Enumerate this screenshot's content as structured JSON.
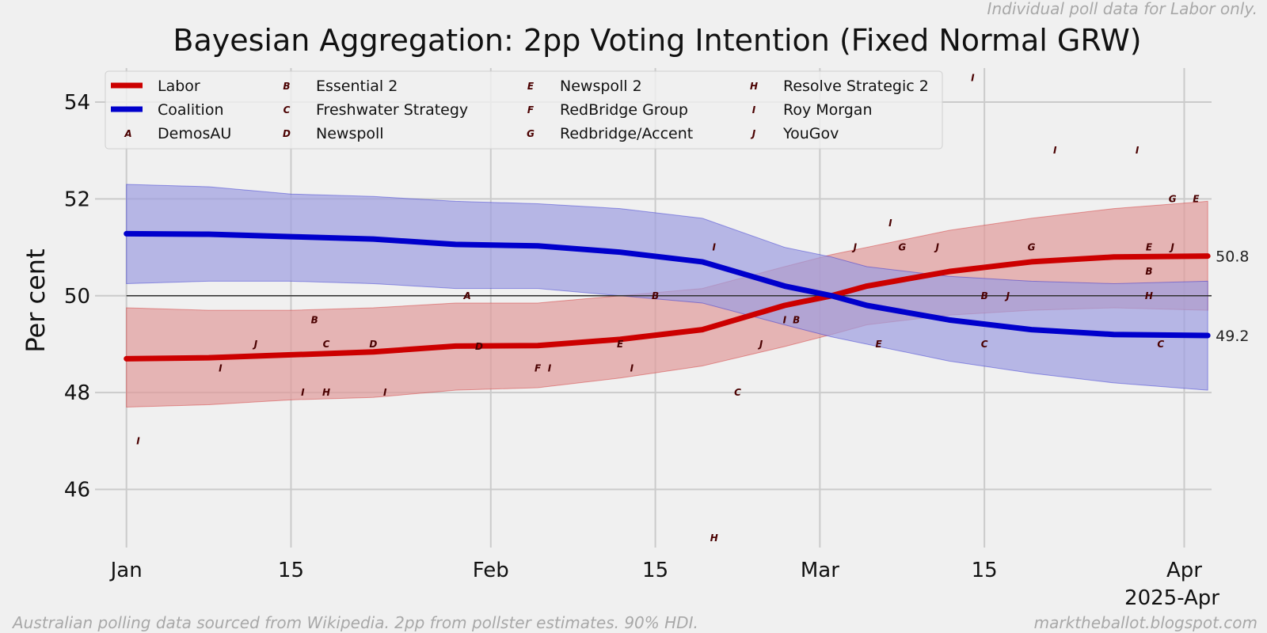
{
  "chart_data": {
    "type": "line",
    "title": "Bayesian Aggregation: 2pp Voting Intention (Fixed Normal GRW)",
    "top_note": "Individual poll data for Labor only.",
    "footer_left": "Australian polling data sourced from Wikipedia. 2pp from pollster estimates. 90% HDI.",
    "footer_right": "marktheballot.blogspot.com",
    "ylabel": "Per cent",
    "xlabel": "2025-Apr",
    "x_unit": "day of 2025 (1 = Jan 1)",
    "xlim": [
      -1,
      94
    ],
    "ylim": [
      44.8,
      54.8
    ],
    "yticks": [
      46,
      48,
      50,
      52,
      54
    ],
    "xticks": [
      {
        "day": 1,
        "label": "Jan"
      },
      {
        "day": 15,
        "label": "15"
      },
      {
        "day": 32,
        "label": "Feb"
      },
      {
        "day": 46,
        "label": "15"
      },
      {
        "day": 60,
        "label": "Mar"
      },
      {
        "day": 74,
        "label": "15"
      },
      {
        "day": 91,
        "label": "Apr"
      }
    ],
    "reference_line": 50,
    "legend_position": "top-left",
    "series": [
      {
        "name": "Labor",
        "color": "#cc0000",
        "band_color": "#e09a9a",
        "x": [
          1,
          8,
          15,
          22,
          29,
          36,
          43,
          50,
          57,
          61,
          64,
          71,
          78,
          85,
          93
        ],
        "mid": [
          48.7,
          48.72,
          48.78,
          48.84,
          48.96,
          48.97,
          49.1,
          49.3,
          49.8,
          50.0,
          50.2,
          50.5,
          50.7,
          50.8,
          50.82
        ],
        "low": [
          47.7,
          47.75,
          47.85,
          47.9,
          48.05,
          48.1,
          48.3,
          48.55,
          48.95,
          49.2,
          49.4,
          49.6,
          49.7,
          49.75,
          49.7
        ],
        "high": [
          49.75,
          49.7,
          49.7,
          49.75,
          49.85,
          49.85,
          50.0,
          50.15,
          50.6,
          50.85,
          51.0,
          51.35,
          51.6,
          51.8,
          51.95
        ],
        "end_label": "50.8"
      },
      {
        "name": "Coalition",
        "color": "#0000cc",
        "band_color": "#9d9de0",
        "x": [
          1,
          8,
          15,
          22,
          29,
          36,
          43,
          50,
          57,
          61,
          64,
          71,
          78,
          85,
          93
        ],
        "mid": [
          51.28,
          51.27,
          51.22,
          51.17,
          51.06,
          51.03,
          50.9,
          50.7,
          50.2,
          50.0,
          49.8,
          49.5,
          49.3,
          49.2,
          49.18
        ],
        "low": [
          50.25,
          50.3,
          50.3,
          50.25,
          50.15,
          50.15,
          50.0,
          49.85,
          49.4,
          49.15,
          49.0,
          48.65,
          48.4,
          48.2,
          48.05
        ],
        "high": [
          52.3,
          52.25,
          52.1,
          52.05,
          51.95,
          51.9,
          51.8,
          51.6,
          51.0,
          50.8,
          50.6,
          50.4,
          50.3,
          50.25,
          50.3
        ],
        "end_label": "49.2"
      }
    ],
    "polls": [
      {
        "day": 2,
        "value": 47.0,
        "code": "I"
      },
      {
        "day": 9,
        "value": 48.5,
        "code": "I"
      },
      {
        "day": 12,
        "value": 49.0,
        "code": "J"
      },
      {
        "day": 16,
        "value": 48.0,
        "code": "I"
      },
      {
        "day": 17,
        "value": 49.5,
        "code": "B"
      },
      {
        "day": 18,
        "value": 49.0,
        "code": "C"
      },
      {
        "day": 18,
        "value": 48.0,
        "code": "H"
      },
      {
        "day": 22,
        "value": 49.0,
        "code": "D"
      },
      {
        "day": 23,
        "value": 48.0,
        "code": "I"
      },
      {
        "day": 30,
        "value": 50.0,
        "code": "A"
      },
      {
        "day": 31,
        "value": 48.95,
        "code": "D"
      },
      {
        "day": 36,
        "value": 48.5,
        "code": "F"
      },
      {
        "day": 37,
        "value": 48.5,
        "code": "I"
      },
      {
        "day": 43,
        "value": 49.0,
        "code": "E"
      },
      {
        "day": 44,
        "value": 48.5,
        "code": "I"
      },
      {
        "day": 46,
        "value": 50.0,
        "code": "B"
      },
      {
        "day": 51,
        "value": 51.0,
        "code": "I"
      },
      {
        "day": 51,
        "value": 45.0,
        "code": "H"
      },
      {
        "day": 53,
        "value": 48.0,
        "code": "C"
      },
      {
        "day": 55,
        "value": 49.0,
        "code": "J"
      },
      {
        "day": 57,
        "value": 49.5,
        "code": "I"
      },
      {
        "day": 58,
        "value": 49.5,
        "code": "B"
      },
      {
        "day": 63,
        "value": 51.0,
        "code": "J"
      },
      {
        "day": 65,
        "value": 49.0,
        "code": "E"
      },
      {
        "day": 66,
        "value": 51.5,
        "code": "I"
      },
      {
        "day": 67,
        "value": 51.0,
        "code": "G"
      },
      {
        "day": 70,
        "value": 51.0,
        "code": "J"
      },
      {
        "day": 73,
        "value": 54.5,
        "code": "I"
      },
      {
        "day": 74,
        "value": 50.0,
        "code": "B"
      },
      {
        "day": 74,
        "value": 49.0,
        "code": "C"
      },
      {
        "day": 76,
        "value": 50.0,
        "code": "J"
      },
      {
        "day": 78,
        "value": 51.0,
        "code": "G"
      },
      {
        "day": 80,
        "value": 53.0,
        "code": "I"
      },
      {
        "day": 87,
        "value": 53.0,
        "code": "I"
      },
      {
        "day": 88,
        "value": 51.0,
        "code": "E"
      },
      {
        "day": 88,
        "value": 50.5,
        "code": "B"
      },
      {
        "day": 88,
        "value": 50.0,
        "code": "H"
      },
      {
        "day": 89,
        "value": 49.0,
        "code": "C"
      },
      {
        "day": 90,
        "value": 51.0,
        "code": "J"
      },
      {
        "day": 90,
        "value": 52.0,
        "code": "G"
      },
      {
        "day": 92,
        "value": 52.0,
        "code": "E"
      }
    ],
    "legend": [
      {
        "kind": "line",
        "color": "#cc0000",
        "label": "Labor"
      },
      {
        "kind": "line",
        "color": "#0000cc",
        "label": "Coalition"
      },
      {
        "kind": "marker",
        "code": "A",
        "label": "DemosAU"
      },
      {
        "kind": "marker",
        "code": "B",
        "label": "Essential 2"
      },
      {
        "kind": "marker",
        "code": "C",
        "label": "Freshwater Strategy"
      },
      {
        "kind": "marker",
        "code": "D",
        "label": "Newspoll"
      },
      {
        "kind": "marker",
        "code": "E",
        "label": "Newspoll 2"
      },
      {
        "kind": "marker",
        "code": "F",
        "label": "RedBridge Group"
      },
      {
        "kind": "marker",
        "code": "G",
        "label": "Redbridge/Accent"
      },
      {
        "kind": "marker",
        "code": "H",
        "label": "Resolve Strategic 2"
      },
      {
        "kind": "marker",
        "code": "I",
        "label": "Roy Morgan"
      },
      {
        "kind": "marker",
        "code": "J",
        "label": "YouGov"
      }
    ]
  }
}
